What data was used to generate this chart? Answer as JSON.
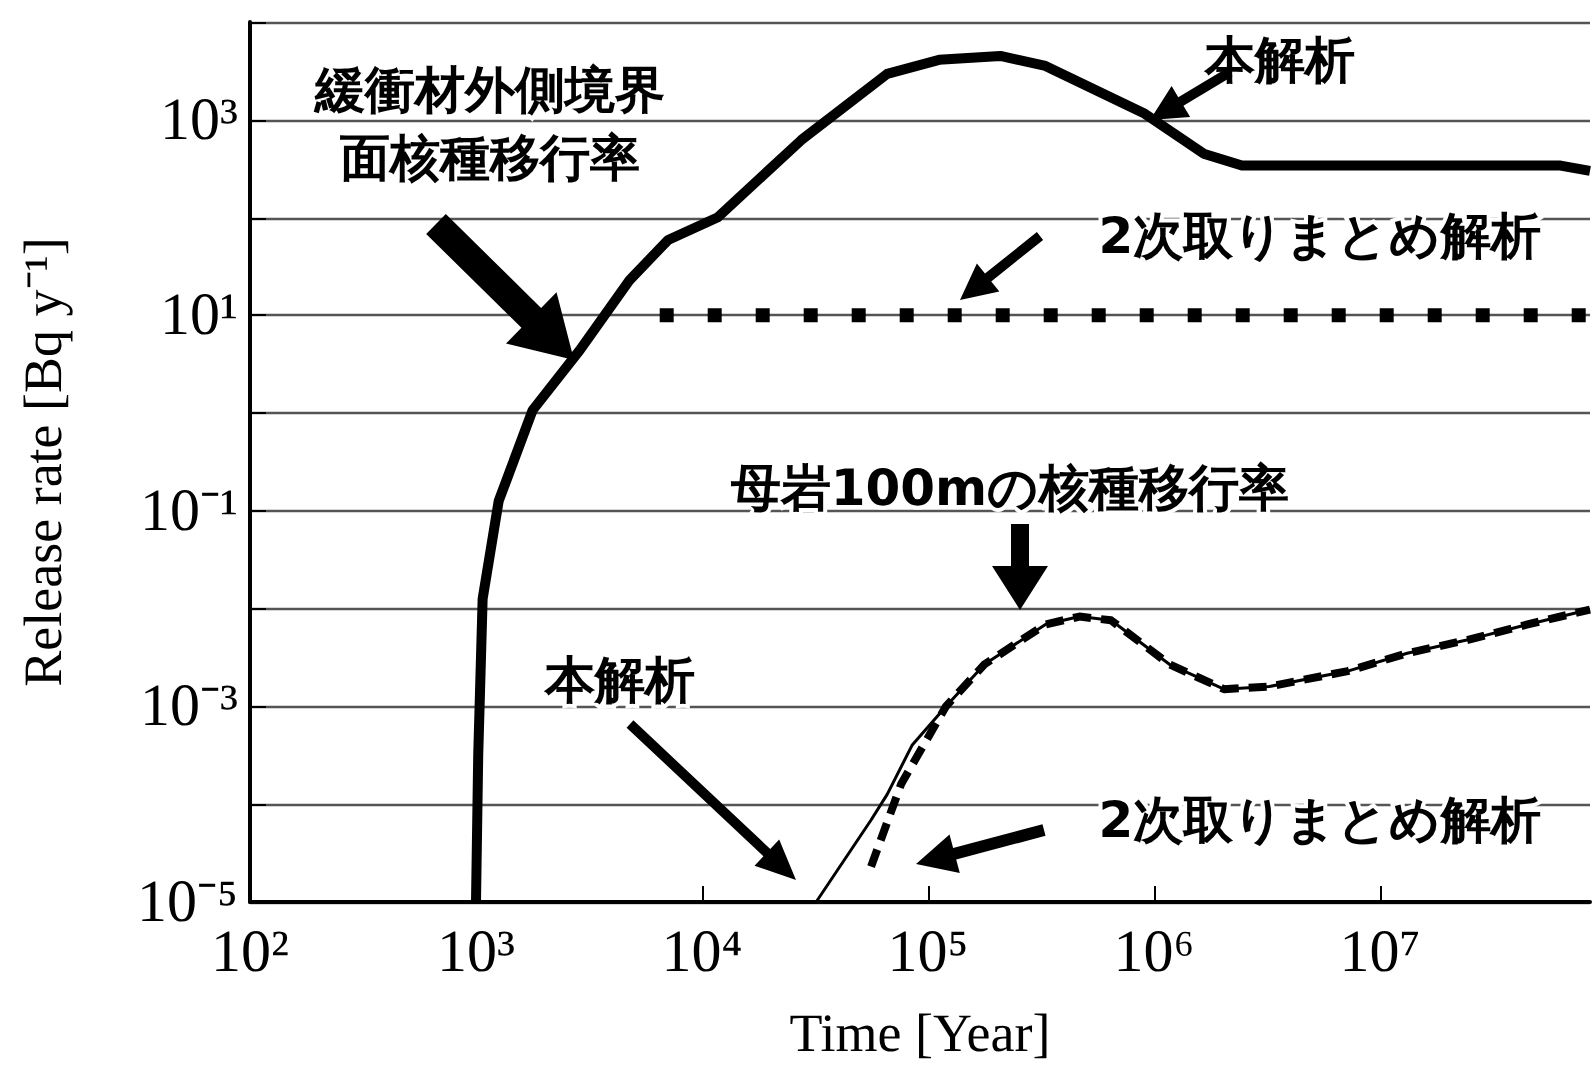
{
  "chart_data": {
    "type": "line",
    "xlabel": "Time [Year]",
    "ylabel": "Release rate [Bq y⁻¹]",
    "log": "xy",
    "grid": "y",
    "marker": "none",
    "xlim": [
      100,
      85000000
    ],
    "ylim": [
      1e-05,
      10000
    ],
    "xticks": [
      {
        "value": 100,
        "label": "10²"
      },
      {
        "value": 1000,
        "label": "10³"
      },
      {
        "value": 10000,
        "label": "10⁴"
      },
      {
        "value": 100000,
        "label": "10⁵"
      },
      {
        "value": 1000000,
        "label": "10⁶"
      },
      {
        "value": 10000000,
        "label": "10⁷"
      }
    ],
    "yticks": [
      {
        "value": 1e-05,
        "label": "10⁻⁵"
      },
      {
        "value": 0.0001,
        "label": null
      },
      {
        "value": 0.001,
        "label": "10⁻³"
      },
      {
        "value": 0.01,
        "label": null
      },
      {
        "value": 0.1,
        "label": "10⁻¹"
      },
      {
        "value": 1,
        "label": null
      },
      {
        "value": 10,
        "label": "10¹"
      },
      {
        "value": 100,
        "label": null
      },
      {
        "value": 1000,
        "label": "10³"
      },
      {
        "value": 10000,
        "label": null
      }
    ],
    "series": [
      {
        "color": "#000000",
        "line_style": "solid",
        "x": [
          1000,
          1023,
          1070,
          1260,
          1780,
          2880,
          4790,
          7080,
          11700,
          27500,
          66000,
          112000,
          209000,
          331000,
          912000,
          1660000,
          2450000,
          63000000,
          85000000
        ],
        "values": [
          1e-05,
          0.00032,
          0.0126,
          0.126,
          1.07,
          4.4,
          23,
          59,
          100,
          620,
          2950,
          4100,
          4500,
          3550,
          1150,
          450,
          340,
          340,
          300
        ]
      },
      {
        "color": "#000000",
        "line_style": "dotted",
        "x": [
          6500,
          85000000
        ],
        "values": [
          10,
          10
        ]
      },
      {
        "color": "#000000",
        "line_style": "solid",
        "x": [
          32000,
          56000,
          66000,
          85000,
          120000,
          178000,
          331000,
          468000,
          646000,
          1170000,
          2040000,
          3240000,
          7200000,
          13200000,
          24500000,
          45000000,
          85000000
        ],
        "values": [
          1e-05,
          6.9e-05,
          0.000126,
          0.0004,
          0.001,
          0.0027,
          0.0069,
          0.0083,
          0.0076,
          0.0027,
          0.0015,
          0.0016,
          0.0023,
          0.0035,
          0.0048,
          0.0069,
          0.0098
        ]
      },
      {
        "color": "#000000",
        "line_style": "dashed",
        "x": [
          56000,
          76000,
          120000,
          178000,
          331000,
          468000,
          646000,
          1170000,
          2040000,
          3240000,
          7200000,
          13200000,
          24500000,
          45000000,
          85000000
        ],
        "values": [
          2.3e-05,
          0.00016,
          0.001,
          0.0027,
          0.0069,
          0.0083,
          0.0076,
          0.0027,
          0.0015,
          0.0016,
          0.0023,
          0.0035,
          0.0048,
          0.0069,
          0.0098
        ]
      }
    ],
    "annotations": [
      "緩衝材外側境界面核種移行率",
      "本解析",
      "2次取りまとめ解析",
      "母岩100mの核種移行率",
      "本解析",
      "2次取りまとめ解析"
    ]
  }
}
